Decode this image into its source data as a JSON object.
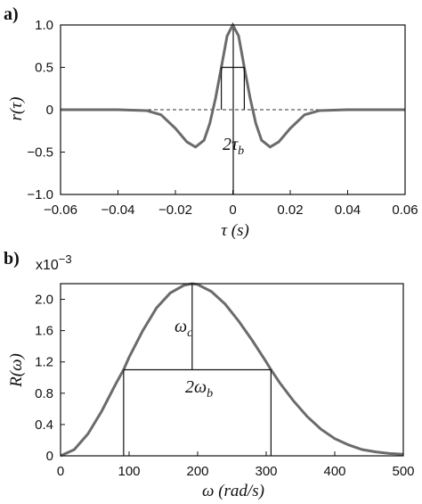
{
  "chart_data": [
    {
      "panel": "a)",
      "type": "line",
      "xlabel": "τ (s)",
      "ylabel": "r(τ)",
      "xlim": [
        -0.06,
        0.06
      ],
      "ylim": [
        -1.0,
        1.0
      ],
      "xticks": [
        "−0.06",
        "−0.04",
        "−0.02",
        "0",
        "0.02",
        "0.04",
        "0.06"
      ],
      "yticks": [
        "−1.0",
        "−0.5",
        "0",
        "0.5",
        "1.0"
      ],
      "baseline": "dashed at 0",
      "series": [
        {
          "x": [
            -0.06,
            -0.04,
            -0.03,
            -0.025,
            -0.02,
            -0.016,
            -0.013,
            -0.01,
            -0.008,
            -0.006,
            -0.004,
            -0.002,
            0,
            0.002,
            0.004,
            0.006,
            0.008,
            0.01,
            0.013,
            0.016,
            0.02,
            0.025,
            0.03,
            0.04,
            0.06
          ],
          "y": [
            0,
            0,
            -0.01,
            -0.06,
            -0.22,
            -0.38,
            -0.44,
            -0.36,
            -0.16,
            0.14,
            0.5,
            0.87,
            1.0,
            0.87,
            0.5,
            0.14,
            -0.16,
            -0.36,
            -0.44,
            -0.38,
            -0.22,
            -0.06,
            -0.01,
            0,
            0
          ]
        }
      ],
      "annotation": {
        "text": "2τ",
        "subscript": "b",
        "bar_y": 0.5,
        "bar_x": [
          -0.004,
          0.004
        ]
      }
    },
    {
      "panel": "b)",
      "type": "line",
      "xlabel": "ω (rad/s)",
      "ylabel": "R(ω)",
      "multiplier": "x10",
      "multiplier_exp": "−3",
      "xlim": [
        0,
        500
      ],
      "ylim": [
        0,
        2.2
      ],
      "xticks": [
        "0",
        "100",
        "200",
        "300",
        "400",
        "500"
      ],
      "yticks": [
        "0",
        "0.4",
        "0.8",
        "1.2",
        "1.6",
        "2.0"
      ],
      "series": [
        {
          "x": [
            0,
            20,
            40,
            60,
            80,
            92,
            100,
            120,
            140,
            160,
            180,
            192,
            200,
            220,
            240,
            260,
            280,
            300,
            307,
            320,
            340,
            360,
            380,
            400,
            420,
            440,
            460,
            480,
            500
          ],
          "y": [
            0,
            0.08,
            0.28,
            0.57,
            0.91,
            1.1,
            1.26,
            1.6,
            1.89,
            2.08,
            2.18,
            2.2,
            2.19,
            2.1,
            1.94,
            1.72,
            1.47,
            1.2,
            1.1,
            0.93,
            0.7,
            0.5,
            0.34,
            0.22,
            0.14,
            0.08,
            0.05,
            0.03,
            0.02
          ]
        }
      ],
      "annotations": {
        "center_label": "ω",
        "center_sub": "c",
        "center_x": 192,
        "width_label": "2ω",
        "width_sub": "b",
        "bar_y": 1.1,
        "bar_x": [
          92,
          307
        ]
      }
    }
  ]
}
